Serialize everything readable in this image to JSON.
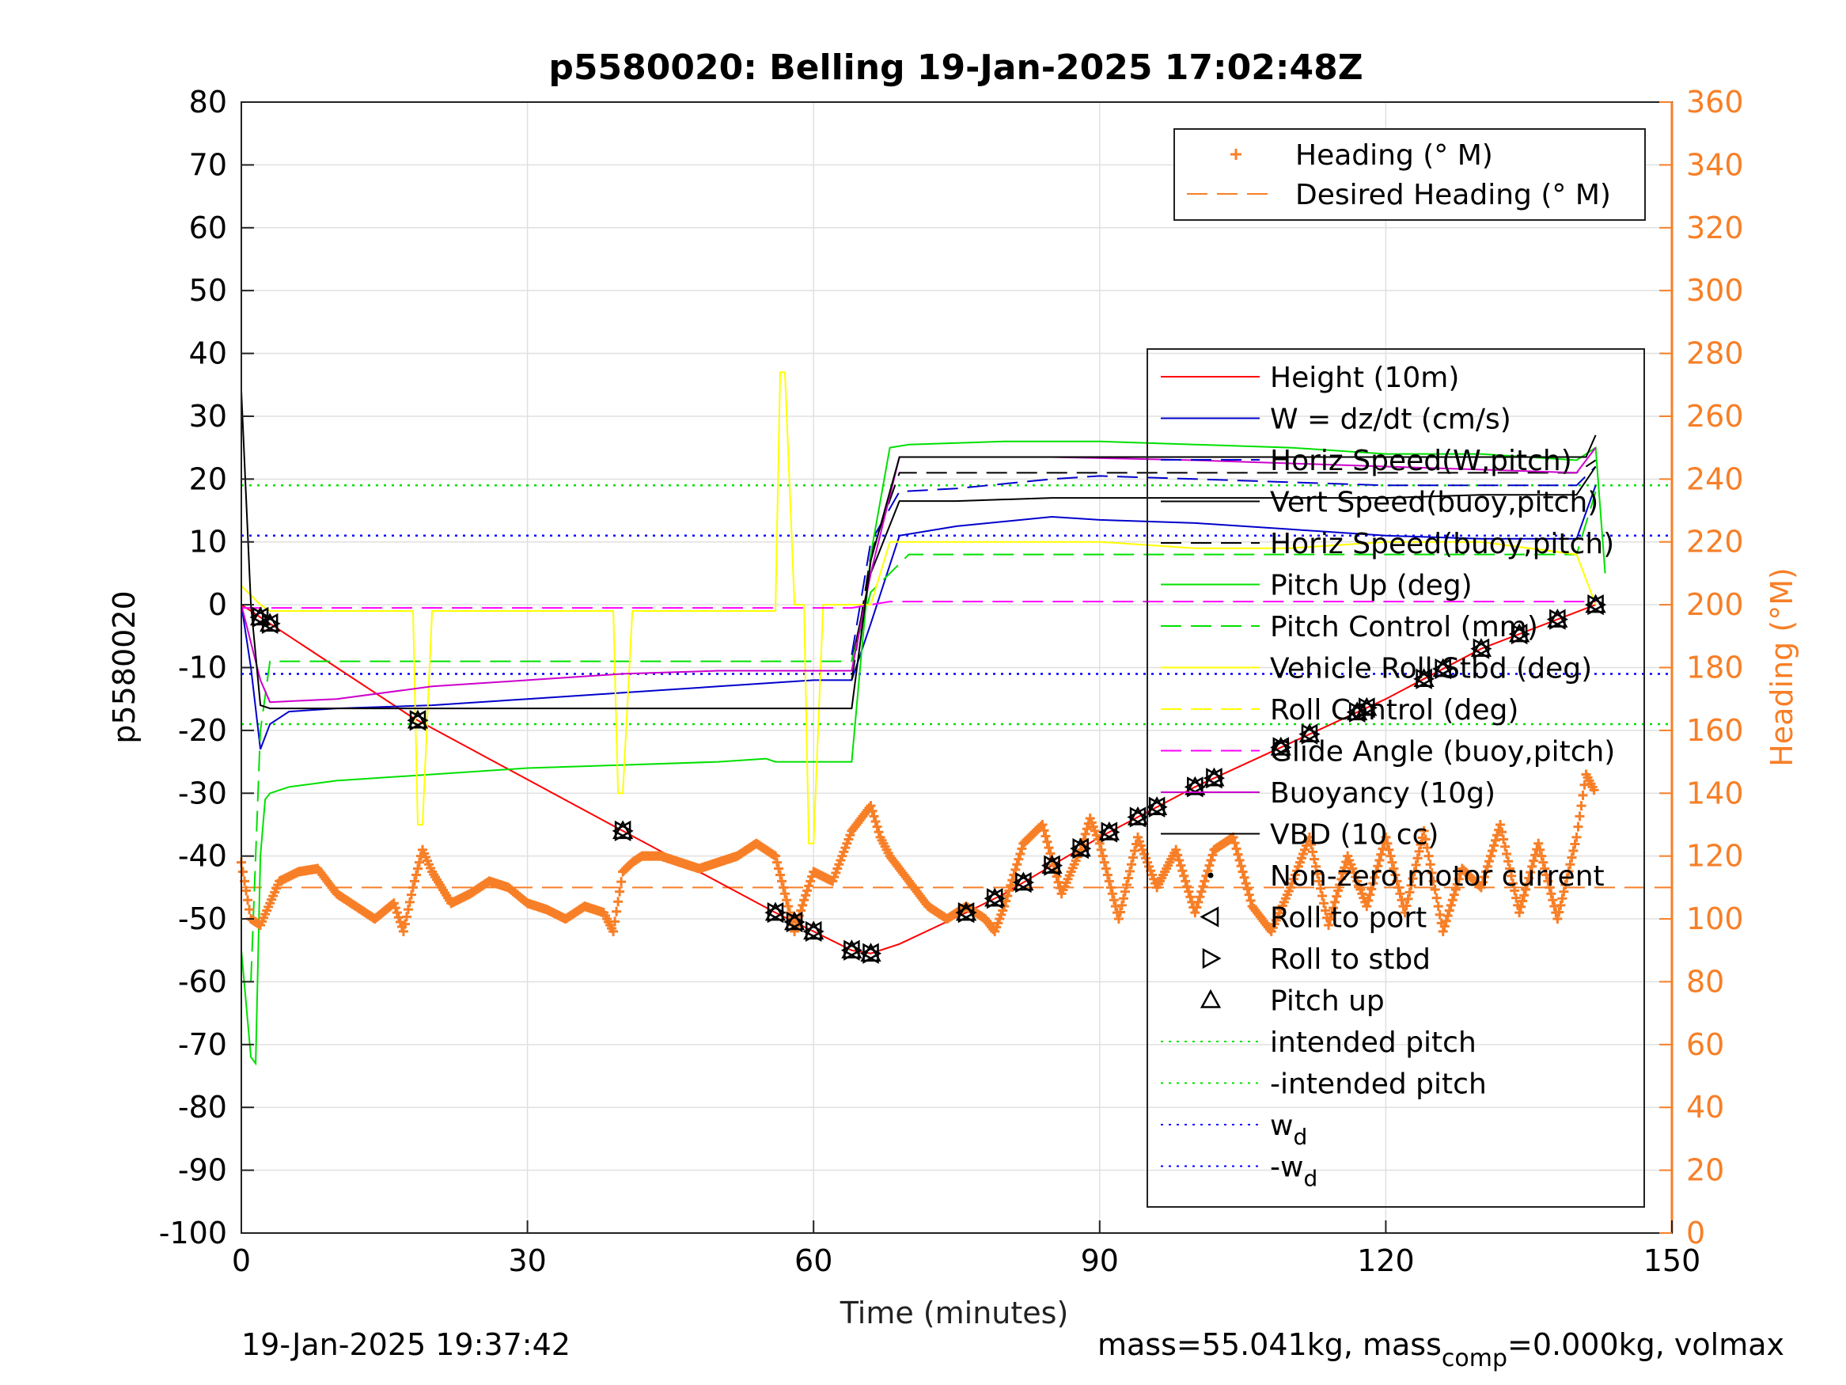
{
  "chart_data": {
    "type": "line",
    "title": "p5580020: Belling 19-Jan-2025 17:02:48Z",
    "xlabel": "Time (minutes)",
    "ylabel": "p5580020",
    "y2label": "Heading (°M)",
    "xlim": [
      0,
      150
    ],
    "ylim": [
      -100,
      80
    ],
    "y2lim": [
      0,
      360
    ],
    "xticks": [
      0,
      30,
      60,
      90,
      120,
      150
    ],
    "yticks": [
      80,
      70,
      60,
      50,
      40,
      30,
      20,
      10,
      0,
      -10,
      -20,
      -30,
      -40,
      -50,
      -60,
      -70,
      -80,
      -90,
      -100
    ],
    "y2ticks": [
      360,
      340,
      320,
      300,
      280,
      260,
      240,
      220,
      200,
      180,
      160,
      140,
      120,
      100,
      80,
      60,
      40,
      20,
      0
    ],
    "grid": true,
    "footer_left": "19-Jan-2025 19:37:42",
    "footer_right_parts": [
      "mass=55.041kg, mass",
      "comp",
      "=0.000kg, volmax"
    ],
    "legend_heading": [
      {
        "label": "Heading (° M)",
        "color": "#f77f27",
        "style": "plus"
      },
      {
        "label": "Desired Heading (° M)",
        "color": "#f77f27",
        "style": "dash"
      }
    ],
    "legend_main": [
      {
        "label": "Height (10m)",
        "color": "#ff0000",
        "style": "solid"
      },
      {
        "label": "W = dz/dt (cm/s)",
        "color": "#0000cc",
        "style": "solid"
      },
      {
        "label": "Horiz Speed(W,pitch)",
        "color": "#0000cc",
        "style": "dash"
      },
      {
        "label": "Vert Speed(buoy,pitch)",
        "color": "#000000",
        "style": "solid"
      },
      {
        "label": "Horiz Speed(buoy,pitch)",
        "color": "#000000",
        "style": "dash"
      },
      {
        "label": "Pitch Up (deg)",
        "color": "#00e000",
        "style": "solid"
      },
      {
        "label": "Pitch Control (mm)",
        "color": "#00e000",
        "style": "dash"
      },
      {
        "label": "Vehicle Roll Stbd (deg)",
        "color": "#ffff00",
        "style": "solid"
      },
      {
        "label": "Roll Control (deg)",
        "color": "#ffff00",
        "style": "dash"
      },
      {
        "label": "Glide Angle (buoy,pitch)",
        "color": "#ff00ff",
        "style": "dash"
      },
      {
        "label": "Buoyancy (10g)",
        "color": "#cc00cc",
        "style": "solid"
      },
      {
        "label": "VBD (10 cc)",
        "color": "#000000",
        "style": "solid"
      },
      {
        "label": "Non-zero motor current",
        "color": "#000000",
        "style": "dot"
      },
      {
        "label": "Roll to port",
        "color": "#000000",
        "style": "tri-left"
      },
      {
        "label": "Roll to stbd",
        "color": "#000000",
        "style": "tri-right"
      },
      {
        "label": "Pitch up",
        "color": "#000000",
        "style": "tri-up"
      },
      {
        "label": "intended pitch",
        "color": "#00e000",
        "style": "dotted"
      },
      {
        "label": "-intended pitch",
        "color": "#00e000",
        "style": "dotted"
      },
      {
        "label": "w",
        "sub": "d",
        "color": "#0000ff",
        "style": "dotted"
      },
      {
        "label": "-w",
        "sub": "d",
        "color": "#0000ff",
        "style": "dotted"
      }
    ],
    "reference_lines": {
      "intended_pitch": 19,
      "minus_intended_pitch": -19,
      "w_d": 11,
      "minus_w_d": -11,
      "desired_heading": 110
    },
    "series": [
      {
        "name": "Height (10m)",
        "axis": "left",
        "color": "#ff0000",
        "x": [
          0,
          1,
          2,
          3,
          18,
          40,
          56,
          60,
          64,
          66,
          69,
          76,
          80,
          90,
          100,
          110,
          120,
          130,
          142
        ],
        "y": [
          0,
          -1,
          -2,
          -3,
          -18,
          -36,
          -49,
          -52,
          -55,
          -55.5,
          -54,
          -49,
          -46,
          -37,
          -29,
          -22,
          -15,
          -7,
          0
        ]
      },
      {
        "name": "W = dz/dt (cm/s)",
        "axis": "left",
        "color": "#0000cc",
        "x": [
          0,
          1,
          2,
          3,
          5,
          10,
          20,
          30,
          40,
          50,
          60,
          64,
          66,
          69,
          75,
          85,
          90,
          100,
          110,
          120,
          130,
          140,
          142
        ],
        "y": [
          0,
          -10,
          -23,
          -19,
          -17,
          -16.5,
          -16,
          -15,
          -14,
          -13,
          -12,
          -12,
          -3,
          11,
          12.5,
          14,
          13.5,
          13,
          12,
          11,
          10.5,
          10.5,
          19
        ]
      },
      {
        "name": "Horiz Speed(W,pitch)",
        "axis": "left",
        "color": "#0000cc",
        "x": [
          64,
          66,
          69,
          75,
          85,
          90,
          100,
          110,
          120,
          130,
          140,
          142
        ],
        "y": [
          -8,
          10,
          18,
          18.5,
          20,
          20.5,
          20,
          19.5,
          19,
          19,
          19,
          22
        ]
      },
      {
        "name": "Vert Speed(buoy,pitch)",
        "axis": "left",
        "color": "#000000",
        "x": [
          64,
          66,
          69,
          75,
          85,
          100,
          110,
          120,
          130,
          140,
          142
        ],
        "y": [
          -9,
          5,
          16.5,
          16.5,
          17,
          17,
          17,
          17,
          17.5,
          17.5,
          22
        ]
      },
      {
        "name": "Horiz Speed(buoy,pitch)",
        "axis": "left",
        "color": "#000000",
        "x": [
          64,
          66,
          69,
          75,
          100,
          130,
          140,
          142
        ],
        "y": [
          -12,
          8,
          21,
          21,
          21,
          21,
          21,
          23
        ]
      },
      {
        "name": "Pitch Up (deg)",
        "axis": "left",
        "color": "#00e000",
        "x": [
          0,
          1,
          1.5,
          2,
          2.5,
          3,
          5,
          10,
          20,
          30,
          40,
          50,
          55,
          56,
          60,
          64,
          65,
          66,
          68,
          70,
          80,
          90,
          100,
          110,
          120,
          130,
          140,
          142,
          143
        ],
        "y": [
          -55,
          -72,
          -73,
          -40,
          -31,
          -30,
          -29,
          -28,
          -27,
          -26,
          -25.5,
          -25,
          -24.5,
          -25,
          -25,
          -25,
          -8,
          8,
          25,
          25.5,
          26,
          26,
          25.5,
          25,
          24,
          24,
          23,
          25,
          5
        ]
      },
      {
        "name": "Pitch Control (mm)",
        "axis": "left",
        "color": "#00e000",
        "x": [
          1,
          2,
          3,
          10,
          40,
          64,
          66,
          70,
          100,
          140,
          142
        ],
        "y": [
          -60,
          -20,
          -9,
          -9,
          -9,
          -9,
          2,
          8,
          8,
          8,
          18
        ]
      },
      {
        "name": "Vehicle Roll Stbd (deg)",
        "axis": "left",
        "color": "#ffff00",
        "x": [
          0,
          2,
          3,
          18,
          18.5,
          19,
          20,
          39,
          39.5,
          40,
          41,
          56,
          56.5,
          57,
          58,
          59,
          59.5,
          60,
          61,
          64,
          66,
          68,
          70,
          80,
          90,
          100,
          110,
          120,
          130,
          140,
          142
        ],
        "y": [
          3,
          0,
          -1,
          -1,
          -35,
          -35,
          -1,
          -1,
          -30,
          -30,
          -1,
          -1,
          37,
          37,
          0,
          0,
          -38,
          -38,
          0,
          0,
          0,
          10,
          10,
          10,
          10,
          9,
          9,
          10,
          10,
          8,
          0
        ]
      },
      {
        "name": "Glide Angle (buoy,pitch)",
        "axis": "left",
        "color": "#ff00ff",
        "x": [
          0,
          64,
          66,
          68,
          142
        ],
        "y": [
          -0.5,
          -0.5,
          0,
          0.5,
          0.5
        ]
      },
      {
        "name": "Buoyancy (10g)",
        "axis": "left",
        "color": "#cc00cc",
        "x": [
          0,
          2,
          3,
          10,
          20,
          30,
          40,
          50,
          60,
          64,
          66,
          69,
          75,
          85,
          100,
          110,
          120,
          130,
          140,
          142
        ],
        "y": [
          0,
          -12,
          -15.5,
          -15,
          -13,
          -12,
          -11,
          -10.5,
          -10.5,
          -10.5,
          5,
          23.5,
          23.5,
          23.5,
          23,
          22.5,
          22,
          21.5,
          21,
          25
        ]
      },
      {
        "name": "VBD (10 cc)",
        "axis": "left",
        "color": "#000000",
        "x": [
          0,
          1,
          2,
          3,
          5,
          60,
          64,
          66,
          69,
          75,
          100,
          130,
          141,
          142
        ],
        "y": [
          34,
          0,
          -16,
          -16.5,
          -16.5,
          -16.5,
          -16.5,
          7,
          23.5,
          23.5,
          23.5,
          23.5,
          23.5,
          27
        ]
      },
      {
        "name": "Heading (° M)",
        "axis": "right",
        "color": "#f77f27",
        "x": [
          0,
          1,
          2,
          4,
          6,
          8,
          10,
          12,
          14,
          16,
          17,
          18,
          19,
          20,
          22,
          24,
          26,
          28,
          30,
          32,
          34,
          36,
          38,
          39,
          40,
          41,
          42,
          44,
          46,
          48,
          50,
          52,
          54,
          56,
          57,
          58,
          59,
          60,
          62,
          64,
          66,
          67,
          68,
          70,
          72,
          74,
          76,
          78,
          79,
          80,
          81,
          82,
          84,
          86,
          88,
          89,
          90,
          92,
          94,
          96,
          98,
          100,
          102,
          104,
          106,
          108,
          110,
          112,
          114,
          116,
          118,
          120,
          122,
          124,
          126,
          128,
          130,
          132,
          134,
          136,
          138,
          140,
          141,
          142
        ],
        "y": [
          118,
          100,
          98,
          112,
          115,
          116,
          108,
          104,
          100,
          105,
          96,
          110,
          122,
          115,
          105,
          108,
          112,
          110,
          105,
          103,
          100,
          104,
          102,
          96,
          115,
          118,
          120,
          120,
          118,
          116,
          118,
          120,
          124,
          120,
          108,
          96,
          106,
          115,
          112,
          128,
          136,
          126,
          120,
          112,
          104,
          100,
          104,
          100,
          96,
          104,
          114,
          124,
          130,
          108,
          122,
          132,
          124,
          100,
          126,
          110,
          122,
          102,
          122,
          126,
          104,
          96,
          110,
          126,
          98,
          120,
          104,
          126,
          102,
          128,
          96,
          116,
          110,
          130,
          102,
          124,
          100,
          126,
          146,
          140
        ]
      }
    ],
    "markers": {
      "roll_to_port_x": [
        2,
        3,
        18.5,
        40,
        56,
        58,
        60,
        64,
        66,
        76,
        79,
        82,
        85,
        88,
        91,
        94,
        96,
        100,
        102,
        109,
        112,
        117,
        118,
        124,
        126,
        130,
        134,
        138,
        142
      ],
      "roll_to_stbd_x": [
        2,
        3,
        18.5,
        40,
        56,
        58,
        60,
        64,
        66,
        76,
        79,
        82,
        85,
        88,
        91,
        94,
        96,
        100,
        102,
        109,
        112,
        117,
        118,
        124,
        126,
        130,
        134,
        138,
        142
      ],
      "pitch_up_x": [
        2,
        3,
        18.5,
        40,
        56,
        58,
        60,
        64,
        66,
        76,
        79,
        82,
        85,
        88,
        91,
        94,
        96,
        100,
        102,
        109,
        112,
        117,
        118,
        124,
        126,
        130,
        134,
        138,
        142
      ]
    }
  }
}
